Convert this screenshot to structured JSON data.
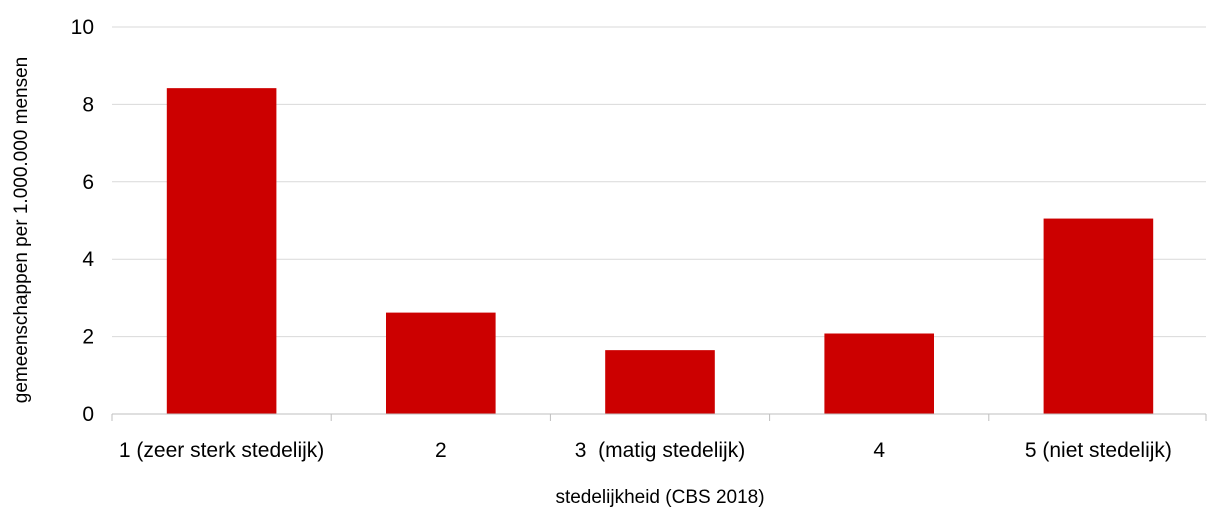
{
  "chart_data": {
    "type": "bar",
    "categories": [
      "1 (zeer sterk stedelijk)",
      "2",
      "3  (matig stedelijk)",
      "4",
      "5 (niet stedelijk)"
    ],
    "values": [
      8.42,
      2.62,
      1.65,
      2.08,
      5.05
    ],
    "xlabel": "stedelijkheid (CBS 2018)",
    "ylabel": "gemeenschappen per 1.000.000 mensen",
    "ylim": [
      0,
      10
    ],
    "yticks": [
      0,
      2,
      4,
      6,
      8,
      10
    ],
    "grid": true,
    "legend": "none",
    "bar_color": "#cc0000"
  }
}
